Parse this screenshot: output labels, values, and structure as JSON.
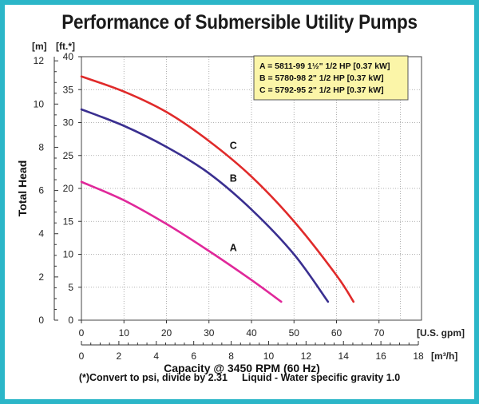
{
  "title": "Performance of Submersible Utility Pumps",
  "footnote": {
    "left": "(*)Convert to psi, divide by 2.31",
    "right": "Liquid - Water specific gravity 1.0"
  },
  "chart_data": {
    "type": "line",
    "title": "Performance of Submersible Utility Pumps",
    "xlabel": "Capacity @ 3450 RPM (60 Hz)",
    "ylabel": "Total Head",
    "x_units": "[U.S. gpm]",
    "x2_units": "[m³/h]",
    "y_units": "[ft.*]",
    "y2_units": "[m]",
    "xlim": [
      0,
      80
    ],
    "ylim": [
      0,
      40
    ],
    "x_ticks": [
      0,
      10,
      20,
      30,
      40,
      50,
      60,
      70
    ],
    "y_ticks": [
      0,
      5,
      10,
      15,
      20,
      25,
      30,
      35,
      40
    ],
    "x2_ticks": [
      0,
      2,
      4,
      6,
      8,
      10,
      12,
      14,
      16,
      18
    ],
    "y2_ticks": [
      0,
      2,
      4,
      6,
      8,
      10,
      12
    ],
    "grid": true,
    "legend_position": "top-right",
    "legend": [
      "A = 5811-99 1½\" 1/2 HP [0.37 kW]",
      "B = 5780-98 2\" 1/2 HP [0.37 kW]",
      "C = 5792-95 2\" 1/2 HP [0.37 kW]"
    ],
    "series": [
      {
        "name": "A",
        "color": "#e0289a",
        "x": [
          0,
          10,
          20,
          30,
          40,
          47
        ],
        "y": [
          21,
          18.2,
          14.6,
          10.5,
          6.1,
          2.8
        ]
      },
      {
        "name": "B",
        "color": "#3a2f90",
        "x": [
          0,
          10,
          20,
          30,
          40,
          50,
          58
        ],
        "y": [
          32,
          29.5,
          26.3,
          22.3,
          16.8,
          10,
          2.8
        ]
      },
      {
        "name": "C",
        "color": "#e02a2a",
        "x": [
          0,
          10,
          20,
          30,
          40,
          50,
          60,
          64
        ],
        "y": [
          37,
          34.7,
          31.6,
          27.2,
          21.8,
          15,
          6.8,
          2.8
        ]
      }
    ],
    "annotations": [
      {
        "text": "C",
        "x": 33,
        "y": 26.5
      },
      {
        "text": "B",
        "x": 33,
        "y": 21.5
      },
      {
        "text": "A",
        "x": 33,
        "y": 11
      }
    ]
  }
}
